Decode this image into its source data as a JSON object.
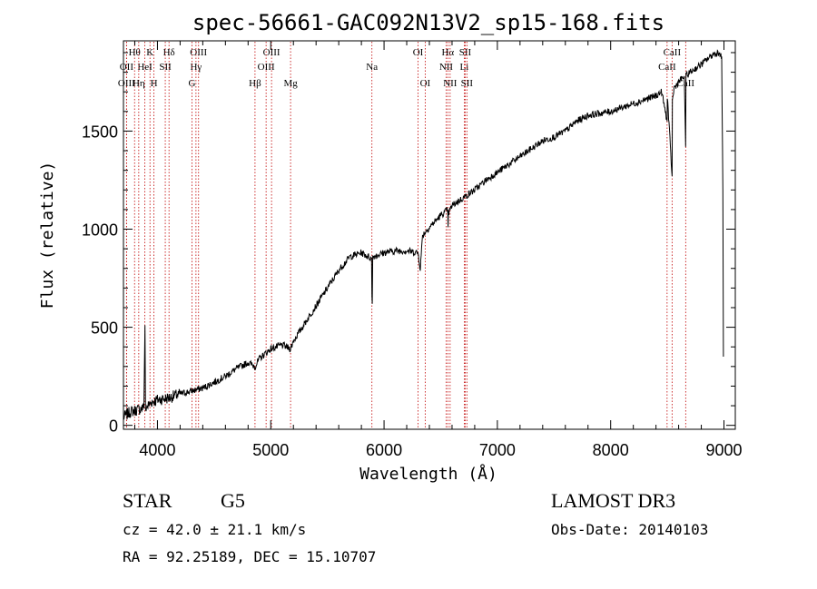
{
  "chart_data": {
    "type": "line",
    "title": "spec-56661-GAC092N13V2_sp15-168.fits",
    "xlabel": "Wavelength (Å)",
    "ylabel": "Flux (relative)",
    "xlim": [
      3700,
      9100
    ],
    "ylim": [
      -20,
      1960
    ],
    "x_ticks": [
      4000,
      5000,
      6000,
      7000,
      8000,
      9000
    ],
    "y_ticks": [
      0,
      500,
      1000,
      1500
    ],
    "x_tick_labels": [
      "4000",
      "5000",
      "6000",
      "7000",
      "8000",
      "9000"
    ],
    "y_tick_labels": [
      "0",
      "500",
      "1000",
      "1500"
    ],
    "series": [
      {
        "name": "spectrum",
        "x": [
          3700,
          3760,
          3830,
          3880,
          3890,
          3895,
          3900,
          3950,
          4000,
          4100,
          4200,
          4300,
          4400,
          4500,
          4600,
          4700,
          4800,
          4861,
          4900,
          5000,
          5100,
          5175,
          5200,
          5300,
          5400,
          5500,
          5600,
          5700,
          5800,
          5890,
          5893,
          5896,
          5900,
          6000,
          6100,
          6200,
          6300,
          6320,
          6340,
          6400,
          6450,
          6500,
          6562,
          6565,
          6568,
          6600,
          6700,
          6800,
          6900,
          7000,
          7100,
          7200,
          7300,
          7400,
          7500,
          7600,
          7700,
          7800,
          7900,
          8000,
          8100,
          8200,
          8300,
          8400,
          8450,
          8498,
          8500,
          8542,
          8545,
          8560,
          8600,
          8650,
          8662,
          8665,
          8700,
          8800,
          8900,
          8950,
          8980,
          8990,
          8995
        ],
        "y": [
          40,
          70,
          80,
          90,
          510,
          80,
          90,
          120,
          130,
          140,
          160,
          175,
          190,
          220,
          250,
          290,
          320,
          300,
          340,
          390,
          410,
          390,
          430,
          520,
          610,
          700,
          790,
          860,
          880,
          850,
          660,
          620,
          860,
          880,
          890,
          890,
          880,
          800,
          970,
          1010,
          1040,
          1070,
          1100,
          1010,
          1080,
          1120,
          1160,
          1200,
          1250,
          1290,
          1330,
          1370,
          1410,
          1450,
          1470,
          1500,
          1550,
          1580,
          1590,
          1600,
          1620,
          1640,
          1660,
          1680,
          1700,
          1550,
          1680,
          1270,
          1650,
          1720,
          1750,
          1780,
          1420,
          1780,
          1800,
          1840,
          1890,
          1900,
          1880,
          1200,
          350
        ]
      }
    ],
    "lines": [
      {
        "label": "Hθ",
        "x": 3798,
        "row": 1
      },
      {
        "label": "OII",
        "x": 3727,
        "row": 2
      },
      {
        "label": "OIII",
        "x": 3727,
        "row": 3
      },
      {
        "label": "K",
        "x": 3934,
        "row": 1
      },
      {
        "label": "HeI",
        "x": 3889,
        "row": 2
      },
      {
        "label": "Hη",
        "x": 3835,
        "row": 3
      },
      {
        "label": "Hδ",
        "x": 4102,
        "row": 1
      },
      {
        "label": "SII",
        "x": 4069,
        "row": 2
      },
      {
        "label": "H",
        "x": 3969,
        "row": 3
      },
      {
        "label": "OIII",
        "x": 4363,
        "row": 1
      },
      {
        "label": "Hγ",
        "x": 4340,
        "row": 2
      },
      {
        "label": "G",
        "x": 4305,
        "row": 3
      },
      {
        "label": "OIII",
        "x": 5007,
        "row": 1
      },
      {
        "label": "OIII",
        "x": 4959,
        "row": 2
      },
      {
        "label": "Hβ",
        "x": 4861,
        "row": 3
      },
      {
        "label": "Mg",
        "x": 5175,
        "row": 3
      },
      {
        "label": "Na",
        "x": 5893,
        "row": 2
      },
      {
        "label": "OI",
        "x": 6300,
        "row": 1
      },
      {
        "label": "OI",
        "x": 6363,
        "row": 3
      },
      {
        "label": "Hα",
        "x": 6563,
        "row": 1
      },
      {
        "label": "SII",
        "x": 6716,
        "row": 1
      },
      {
        "label": "NII",
        "x": 6548,
        "row": 2
      },
      {
        "label": "Li",
        "x": 6708,
        "row": 2
      },
      {
        "label": "NII",
        "x": 6583,
        "row": 3
      },
      {
        "label": "SII",
        "x": 6731,
        "row": 3
      },
      {
        "label": "CaII",
        "x": 8542,
        "row": 1
      },
      {
        "label": "CaII",
        "x": 8498,
        "row": 2
      },
      {
        "label": "CaII",
        "x": 8662,
        "row": 3
      }
    ]
  },
  "info": {
    "object_type": "STAR",
    "subclass": "G5",
    "survey": "LAMOST DR3",
    "cz": "cz = 42.0 ± 21.1 km/s",
    "obs_date": "Obs-Date: 20140103",
    "coords": "RA =  92.25189, DEC =  15.10707"
  }
}
